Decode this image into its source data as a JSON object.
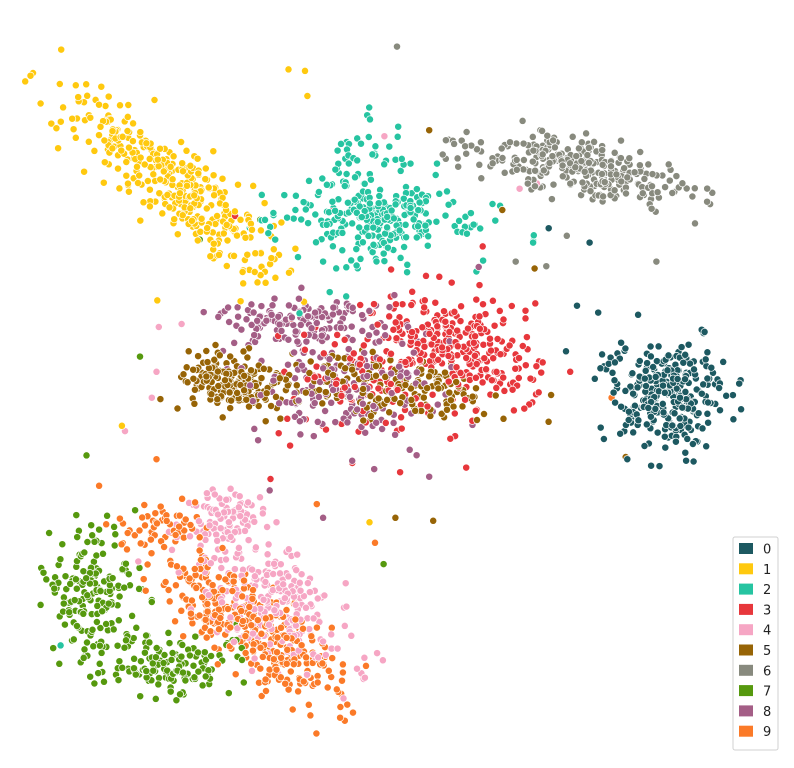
{
  "chart_data": {
    "type": "scatter",
    "title": "",
    "xlabel": "",
    "ylabel": "",
    "axes_visible": false,
    "grid": false,
    "legend_position": "bottom-right",
    "xlim": [
      0,
      100
    ],
    "ylim": [
      0,
      100
    ],
    "series": [
      {
        "name": "0",
        "color": "#1d5961",
        "clusters": [
          {
            "cx": 84.5,
            "cy": 48.8,
            "sx": 3.5,
            "sy": 3.6,
            "rot": -30,
            "n": 320
          }
        ],
        "outliers": [
          [
            72.9,
            60.3
          ],
          [
            75.6,
            59.4
          ],
          [
            74.5,
            68.6
          ],
          [
            69.3,
            70.5
          ],
          [
            76.1,
            53.9
          ],
          [
            79.3,
            40.1
          ],
          [
            83.4,
            39.2
          ],
          [
            71.5,
            54.3
          ]
        ]
      },
      {
        "name": "1",
        "color": "#ffc90f",
        "clusters": [
          {
            "cx": 21.5,
            "cy": 76.5,
            "sx": 2.5,
            "sy": 8.8,
            "rot": 48,
            "n": 360
          }
        ],
        "outliers": [
          [
            15.0,
            44.5
          ],
          [
            38.3,
            91.2
          ],
          [
            36.2,
            91.4
          ],
          [
            38.6,
            87.9
          ],
          [
            19.5,
            61.0
          ],
          [
            46.5,
            31.8
          ],
          [
            30.1,
            60.9
          ]
        ]
      },
      {
        "name": "2",
        "color": "#26c4a1",
        "clusters": [
          {
            "cx": 47.0,
            "cy": 74.0,
            "sx": 3.6,
            "sy": 4.8,
            "rot": 0,
            "n": 170
          },
          {
            "cx": 48.0,
            "cy": 71.5,
            "sx": 7.5,
            "sy": 1.8,
            "rot": -5,
            "n": 140
          }
        ],
        "outliers": [
          [
            60.1,
            64.8
          ],
          [
            62.5,
            71.5
          ],
          [
            34.5,
            69.0
          ],
          [
            37.4,
            66.7
          ],
          [
            37.6,
            59.3
          ],
          [
            7.2,
            15.6
          ],
          [
            40.6,
            66.1
          ]
        ]
      },
      {
        "name": "3",
        "color": "#e7373c",
        "clusters": [
          {
            "cx": 58.0,
            "cy": 55.0,
            "sx": 5.5,
            "sy": 3.2,
            "rot": -25,
            "n": 260
          },
          {
            "cx": 47.5,
            "cy": 50.0,
            "sx": 6.5,
            "sy": 4.0,
            "rot": 0,
            "n": 110
          }
        ],
        "outliers": [
          [
            60.9,
            68.1
          ],
          [
            41.6,
            72.7
          ],
          [
            29.4,
            72.1
          ],
          [
            67.6,
            60.6
          ],
          [
            58.8,
            39.0
          ],
          [
            50.4,
            38.4
          ],
          [
            33.9,
            37.5
          ]
        ]
      },
      {
        "name": "4",
        "color": "#f6a6c4",
        "clusters": [
          {
            "cx": 28.5,
            "cy": 32.5,
            "sx": 2.5,
            "sy": 1.8,
            "rot": 0,
            "n": 80
          },
          {
            "cx": 34.0,
            "cy": 21.5,
            "sx": 6.0,
            "sy": 3.2,
            "rot": -45,
            "n": 260
          }
        ],
        "outliers": [
          [
            48.4,
            82.6
          ],
          [
            19.4,
            51.6
          ],
          [
            19.7,
            57.5
          ],
          [
            18.8,
            48.2
          ],
          [
            67.8,
            76.4
          ],
          [
            65.6,
            75.7
          ],
          [
            22.6,
            57.9
          ],
          [
            15.4,
            43.8
          ]
        ]
      },
      {
        "name": "5",
        "color": "#976406",
        "clusters": [
          {
            "cx": 29.0,
            "cy": 50.0,
            "sx": 3.5,
            "sy": 2.0,
            "rot": 0,
            "n": 170
          },
          {
            "cx": 47.5,
            "cy": 49.5,
            "sx": 8.5,
            "sy": 2.2,
            "rot": -5,
            "n": 180
          }
        ],
        "outliers": [
          [
            54.1,
            83.4
          ],
          [
            63.4,
            72.9
          ],
          [
            23.5,
            54.3
          ],
          [
            33.3,
            45.1
          ],
          [
            49.8,
            32.4
          ],
          [
            54.6,
            32.0
          ],
          [
            79.1,
            40.4
          ],
          [
            67.5,
            65.2
          ]
        ]
      },
      {
        "name": "6",
        "color": "#888a7e",
        "clusters": [
          {
            "cx": 74.0,
            "cy": 78.2,
            "sx": 7.0,
            "sy": 1.8,
            "rot": -12,
            "n": 300
          }
        ],
        "outliers": [
          [
            50.0,
            94.4
          ],
          [
            83.0,
            66.1
          ],
          [
            71.6,
            69.5
          ],
          [
            65.1,
            66.1
          ],
          [
            69.0,
            65.5
          ],
          [
            58.8,
            80.3
          ],
          [
            60.7,
            80.6
          ]
        ]
      },
      {
        "name": "7",
        "color": "#56990e",
        "clusters": [
          {
            "cx": 11.0,
            "cy": 23.0,
            "sx": 3.0,
            "sy": 4.0,
            "rot": 0,
            "n": 170
          },
          {
            "cx": 20.5,
            "cy": 13.0,
            "sx": 4.0,
            "sy": 2.0,
            "rot": -5,
            "n": 150
          }
        ],
        "outliers": [
          [
            10.5,
            40.6
          ],
          [
            48.3,
            26.3
          ],
          [
            17.3,
            53.6
          ],
          [
            24.9,
            69.0
          ],
          [
            32.6,
            71.6
          ],
          [
            29.6,
            18.4
          ],
          [
            29.1,
            16.3
          ]
        ]
      },
      {
        "name": "8",
        "color": "#a45e86",
        "clusters": [
          {
            "cx": 37.0,
            "cy": 58.5,
            "sx": 5.5,
            "sy": 1.6,
            "rot": 0,
            "n": 130
          },
          {
            "cx": 44.0,
            "cy": 50.0,
            "sx": 6.0,
            "sy": 4.0,
            "rot": 0,
            "n": 170
          }
        ],
        "outliers": [
          [
            40.6,
            32.4
          ],
          [
            33.8,
            36.0
          ],
          [
            47.1,
            38.8
          ],
          [
            54.1,
            37.8
          ],
          [
            44.3,
            39.9
          ],
          [
            60.4,
            65.4
          ]
        ]
      },
      {
        "name": "9",
        "color": "#fb7a28",
        "clusters": [
          {
            "cx": 19.5,
            "cy": 31.0,
            "sx": 2.5,
            "sy": 1.5,
            "rot": 0,
            "n": 50
          },
          {
            "cx": 31.5,
            "cy": 18.0,
            "sx": 7.2,
            "sy": 2.5,
            "rot": -40,
            "n": 360
          }
        ],
        "outliers": [
          [
            19.4,
            40.1
          ],
          [
            12.1,
            36.6
          ],
          [
            47.2,
            29.1
          ],
          [
            77.3,
            48.2
          ],
          [
            39.8,
            34.2
          ],
          [
            32.2,
            19.0
          ]
        ]
      }
    ]
  }
}
